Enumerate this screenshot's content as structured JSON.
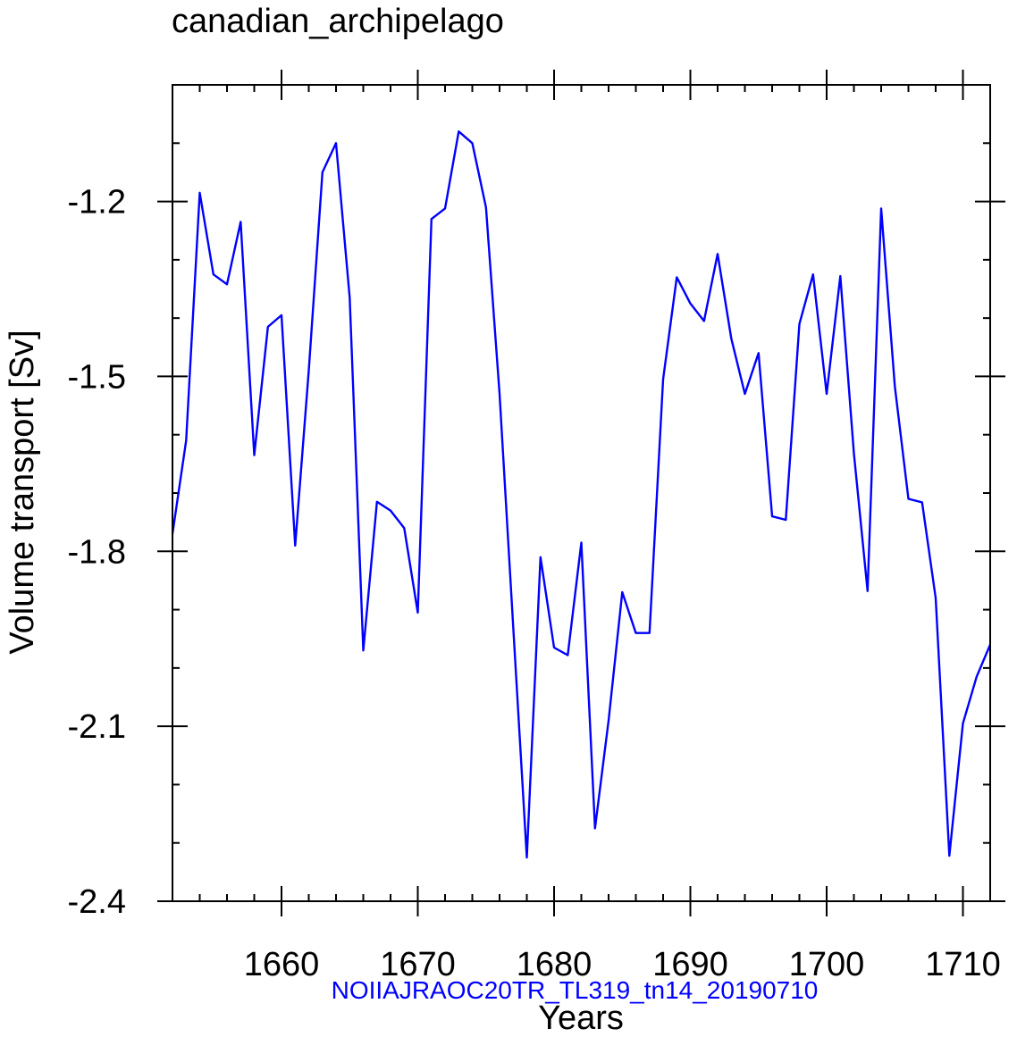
{
  "chart_data": {
    "type": "line",
    "title": "canadian_archipelago",
    "xlabel": "Years",
    "ylabel": "Volume transport [Sv]",
    "caption": "NOIIAJRAOC20TR_TL319_tn14_20190710",
    "xlim": [
      1652,
      1712
    ],
    "ylim": [
      -2.4,
      -1.0
    ],
    "x_ticks": [
      1660,
      1670,
      1680,
      1690,
      1700,
      1710
    ],
    "x_tick_labels": [
      "1660",
      "1670",
      "1680",
      "1690",
      "1700",
      "1710"
    ],
    "y_ticks": [
      -2.4,
      -2.1,
      -1.8,
      -1.5,
      -1.2
    ],
    "y_tick_labels": [
      "-2.4",
      "-2.1",
      "-1.8",
      "-1.5",
      "-1.2"
    ],
    "line_color": "#0000ff",
    "grid": false,
    "series": [
      {
        "x": [
          1652,
          1653,
          1654,
          1655,
          1656,
          1657,
          1658,
          1659,
          1660,
          1661,
          1662,
          1663,
          1664,
          1665,
          1666,
          1667,
          1668,
          1669,
          1670,
          1671,
          1672,
          1673,
          1674,
          1675,
          1676,
          1677,
          1678,
          1679,
          1680,
          1681,
          1682,
          1683,
          1684,
          1685,
          1686,
          1687,
          1688,
          1689,
          1690,
          1691,
          1692,
          1693,
          1694,
          1695,
          1696,
          1697,
          1698,
          1699,
          1700,
          1701,
          1702,
          1703,
          1704,
          1705,
          1706,
          1707,
          1708,
          1709,
          1710,
          1711,
          1712
        ],
        "values": [
          -1.77,
          -1.61,
          -1.185,
          -1.325,
          -1.342,
          -1.235,
          -1.635,
          -1.415,
          -1.395,
          -1.79,
          -1.49,
          -1.15,
          -1.1,
          -1.365,
          -1.97,
          -1.715,
          -1.73,
          -1.76,
          -1.905,
          -1.23,
          -1.212,
          -1.08,
          -1.1,
          -1.21,
          -1.53,
          -1.93,
          -2.325,
          -1.81,
          -1.965,
          -1.978,
          -1.785,
          -2.275,
          -2.09,
          -1.87,
          -1.94,
          -1.94,
          -1.505,
          -1.33,
          -1.375,
          -1.405,
          -1.29,
          -1.435,
          -1.53,
          -1.46,
          -1.74,
          -1.746,
          -1.41,
          -1.325,
          -1.53,
          -1.328,
          -1.632,
          -1.868,
          -1.212,
          -1.517,
          -1.71,
          -1.716,
          -1.88,
          -2.322,
          -2.095,
          -2.015,
          -1.96
        ]
      }
    ]
  }
}
